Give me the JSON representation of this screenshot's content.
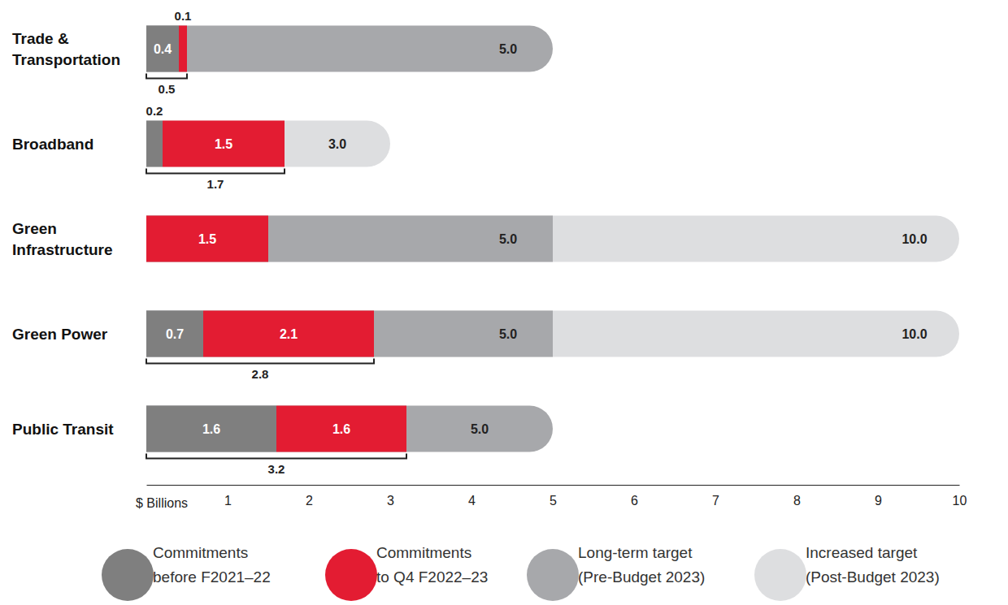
{
  "chart_data": {
    "type": "bar",
    "orientation": "horizontal",
    "stacked": true,
    "data_labels": true,
    "x_label": "$ Billions",
    "categories": [
      "Trade &\nTransportation",
      "Broadband",
      "Green\nInfrastructure",
      "Green Power",
      "Public Transit"
    ],
    "series": [
      {
        "name": "Commitments\nbefore F2021–22",
        "color": "#7f7f7f",
        "type": "bar",
        "values": [
          0.4,
          0.2,
          null,
          0.7,
          1.6
        ],
        "value_labels": [
          "0.4",
          "0.2",
          null,
          "0.7",
          "1.6"
        ]
      },
      {
        "name": "Commitments\nto Q4 F2022–23",
        "color": "#e31c32",
        "type": "bar",
        "values": [
          0.1,
          1.5,
          1.5,
          2.1,
          1.6
        ],
        "value_labels": [
          "0.1",
          "1.5",
          "1.5",
          "2.1",
          "1.6"
        ]
      },
      {
        "name": "Long-term target\n(Pre-Budget 2023)",
        "color": "#a7a8ab",
        "type": "target",
        "values": [
          5.0,
          null,
          5.0,
          5.0,
          5.0
        ],
        "value_labels": [
          "5.0",
          null,
          "5.0",
          "5.0",
          "5.0"
        ]
      },
      {
        "name": "Increased target\n(Post-Budget 2023)",
        "color": "#dddee0",
        "type": "target",
        "values": [
          null,
          3.0,
          10.0,
          10.0,
          null
        ],
        "value_labels": [
          null,
          "3.0",
          "10.0",
          "10.0",
          null
        ]
      }
    ],
    "totals": [
      0.5,
      1.7,
      null,
      2.8,
      3.2
    ],
    "xlim": [
      0,
      10
    ],
    "xticks": [
      1,
      2,
      3,
      4,
      5,
      6,
      7,
      8,
      9,
      10
    ]
  }
}
